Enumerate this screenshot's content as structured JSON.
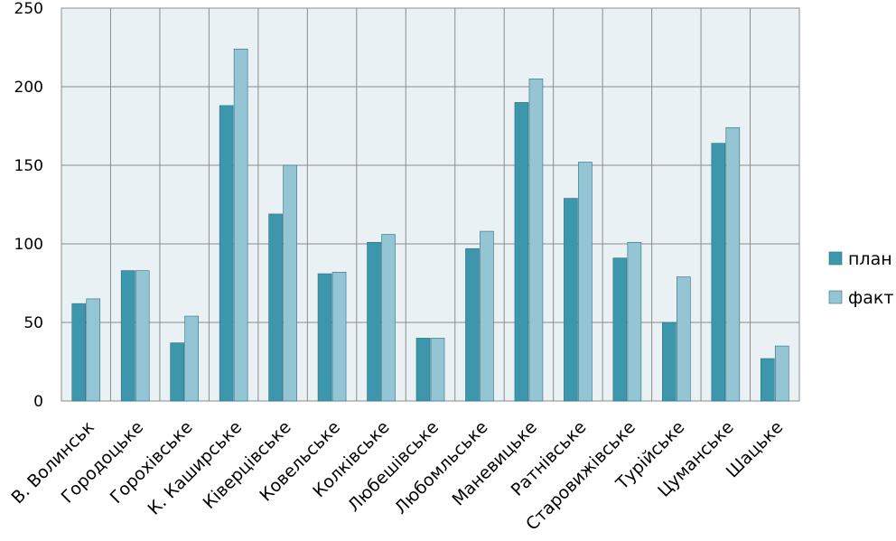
{
  "chart_data": {
    "type": "bar",
    "categories": [
      "В. Волинськ",
      "Городоцьке",
      "Горохівське",
      "К. Каширське",
      "Ківерцівське",
      "Ковельське",
      "Колківське",
      "Любешівське",
      "Любомльське",
      "Маневицьке",
      "Ратнівське",
      "Старовижівське",
      "Турійське",
      "Цуманське",
      "Шацьке"
    ],
    "series": [
      {
        "name": "план",
        "color": "#3d97ac",
        "values": [
          62,
          83,
          37,
          188,
          119,
          81,
          101,
          40,
          97,
          190,
          129,
          91,
          50,
          164,
          27
        ]
      },
      {
        "name": "факт",
        "color": "#93c5d4",
        "values": [
          65,
          83,
          54,
          224,
          150,
          82,
          106,
          40,
          108,
          205,
          152,
          101,
          79,
          174,
          35
        ]
      }
    ],
    "ylim": [
      0,
      250
    ],
    "yticks": [
      0,
      50,
      100,
      150,
      200,
      250
    ],
    "grid": true,
    "legend_position": "right",
    "plot_background": "#eaf1f4",
    "grid_color": "#8c8c8c"
  }
}
